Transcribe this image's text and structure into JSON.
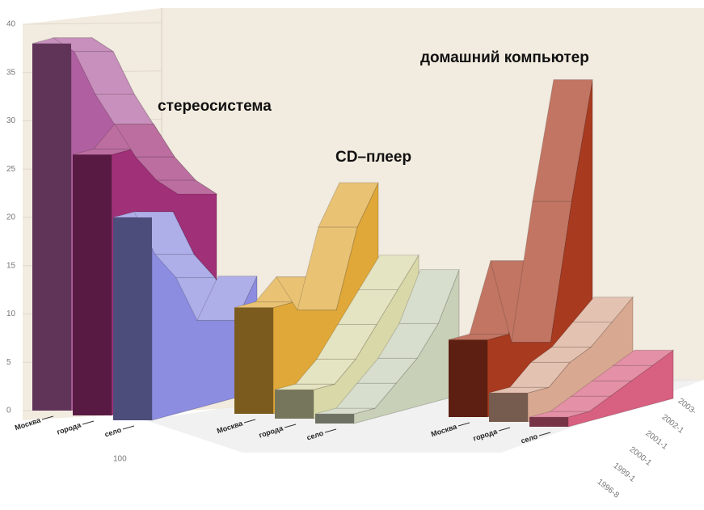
{
  "chart_data": {
    "type": "ribbon3d",
    "ylim": [
      0,
      40
    ],
    "yticks": [
      0,
      5,
      10,
      15,
      20,
      25,
      30,
      35,
      40
    ],
    "grid": true,
    "x": [
      "1996-8",
      "1999-1",
      "2000-1",
      "2001-1",
      "2002-1",
      "2003-"
    ],
    "groups": [
      {
        "name": "стереосистема",
        "series": [
          {
            "name": "Москва",
            "color": "#b060a0",
            "values": [
              38,
              38,
              36,
              31,
              27,
              23
            ]
          },
          {
            "name": "города",
            "color": "#a03078",
            "values": [
              27,
              27,
              29,
              25,
              22,
              20
            ]
          },
          {
            "name": "село",
            "color": "#8c8ce0",
            "values": [
              21,
              21,
              16,
              13,
              8,
              12
            ]
          }
        ]
      },
      {
        "name": "CD–плеер",
        "series": [
          {
            "name": "Москва",
            "color": "#e0a838",
            "values": [
              11,
              11,
              13,
              9,
              17,
              21
            ]
          },
          {
            "name": "города",
            "color": "#d8d8a8",
            "values": [
              3,
              3,
              5,
              8,
              11,
              14
            ]
          },
          {
            "name": "село",
            "color": "#c8d0b8",
            "values": [
              1,
              1,
              3,
              5,
              8,
              13
            ]
          }
        ]
      },
      {
        "name": "домашний компьютер",
        "series": [
          {
            "name": "Москва",
            "color": "#a83a20",
            "values": [
              8,
              8,
              15,
              6,
              20,
              32
            ]
          },
          {
            "name": "города",
            "color": "#d8a890",
            "values": [
              3,
              3,
              5,
              6,
              8,
              10
            ]
          },
          {
            "name": "село",
            "color": "#d86080",
            "values": [
              1,
              1,
              2,
              3,
              4,
              5
            ]
          }
        ]
      }
    ],
    "note": "100"
  }
}
